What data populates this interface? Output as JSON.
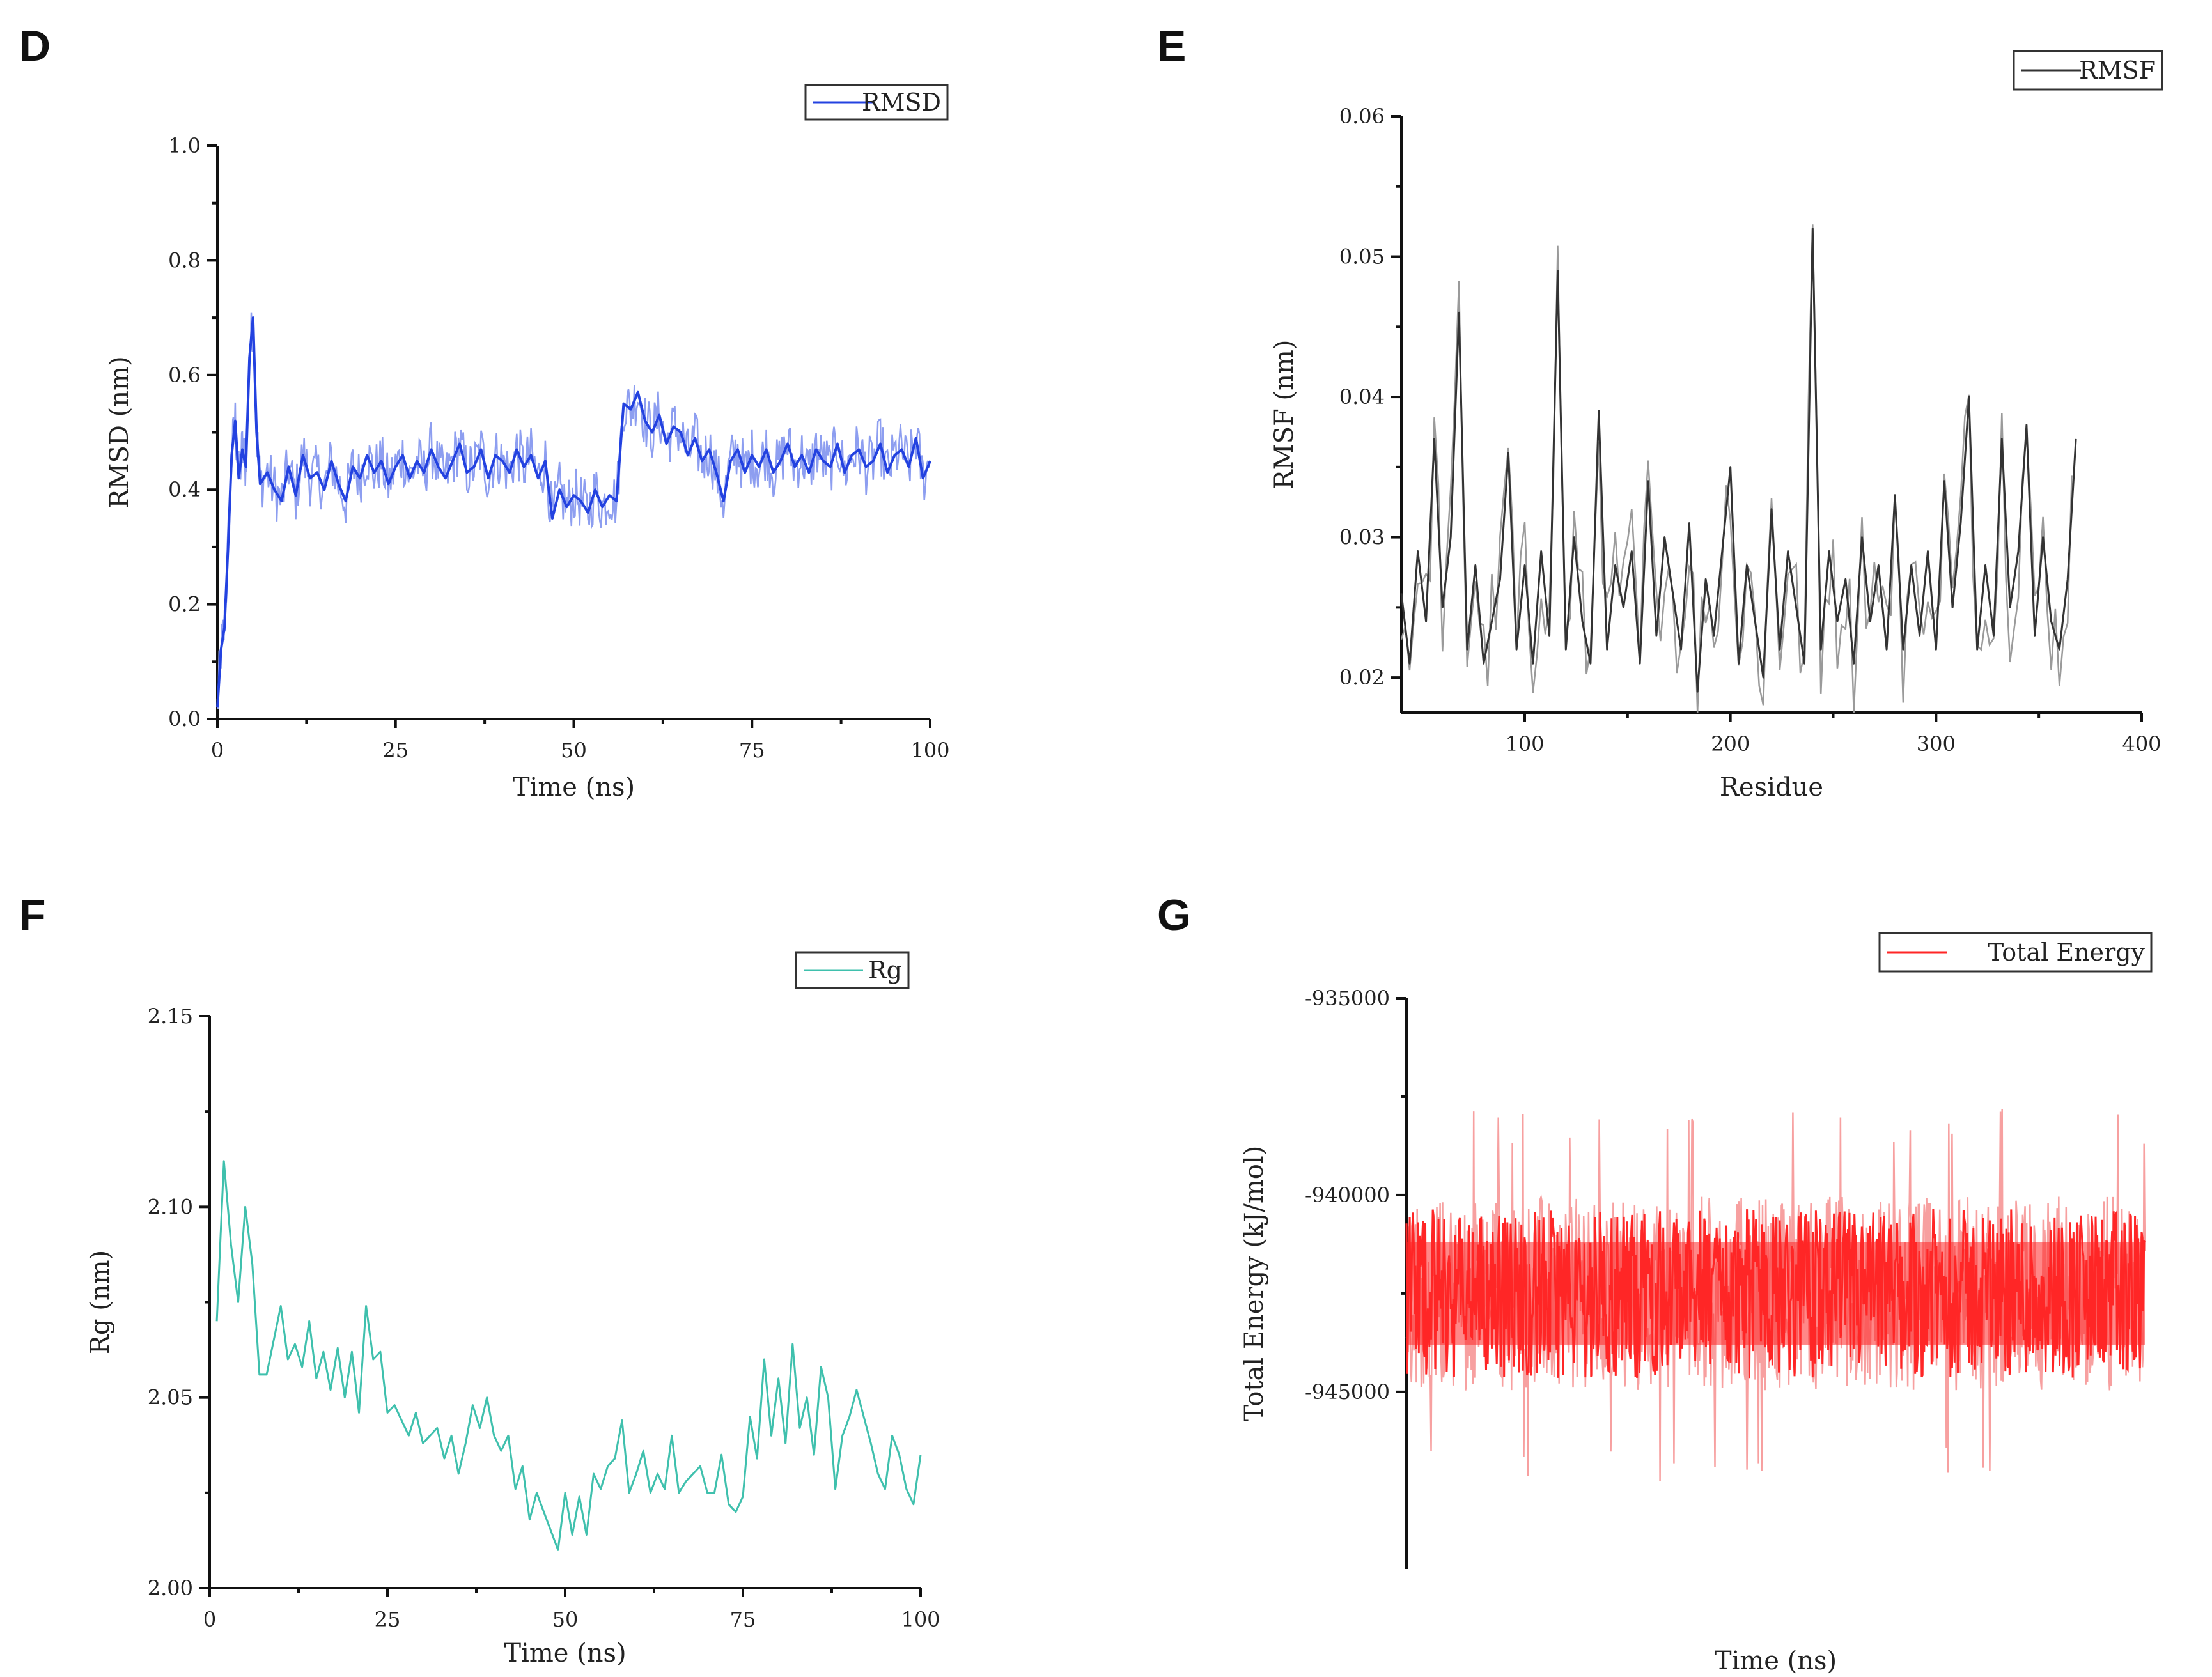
{
  "panels": {
    "D": "D",
    "E": "E",
    "F": "F",
    "G": "G"
  },
  "chart_data": [
    {
      "panel": "D",
      "type": "line",
      "xlabel": "Time (ns)",
      "ylabel": "RMSD (nm)",
      "xlim": [
        0,
        100
      ],
      "ylim": [
        0.0,
        1.0
      ],
      "xticks": [
        0,
        25,
        50,
        75,
        100
      ],
      "xtick_labels": [
        "0",
        "25",
        "50",
        "75",
        "100"
      ],
      "yticks": [
        0.0,
        0.2,
        0.4,
        0.6,
        0.8,
        1.0
      ],
      "ytick_labels": [
        "0.0",
        "0.2",
        "0.4",
        "0.6",
        "0.8",
        "1.0"
      ],
      "legend_position": "top-right",
      "color": "#2342e0",
      "series": [
        {
          "name": "RMSD",
          "x": [
            0,
            0.5,
            1,
            1.5,
            2,
            2.5,
            3,
            3.5,
            4,
            4.5,
            5,
            5.5,
            6,
            7,
            8,
            9,
            10,
            11,
            12,
            13,
            14,
            15,
            16,
            17,
            18,
            19,
            20,
            21,
            22,
            23,
            24,
            25,
            26,
            27,
            28,
            29,
            30,
            31,
            32,
            33,
            34,
            35,
            36,
            37,
            38,
            39,
            40,
            41,
            42,
            43,
            44,
            45,
            46,
            47,
            48,
            49,
            50,
            51,
            52,
            53,
            54,
            55,
            56,
            57,
            58,
            59,
            60,
            61,
            62,
            63,
            64,
            65,
            66,
            67,
            68,
            69,
            70,
            71,
            72,
            73,
            74,
            75,
            76,
            77,
            78,
            79,
            80,
            81,
            82,
            83,
            84,
            85,
            86,
            87,
            88,
            89,
            90,
            91,
            92,
            93,
            94,
            95,
            96,
            97,
            98,
            99,
            100
          ],
          "y": [
            0.02,
            0.12,
            0.16,
            0.3,
            0.46,
            0.52,
            0.42,
            0.47,
            0.44,
            0.63,
            0.7,
            0.5,
            0.41,
            0.43,
            0.4,
            0.38,
            0.44,
            0.39,
            0.46,
            0.42,
            0.43,
            0.4,
            0.45,
            0.41,
            0.38,
            0.44,
            0.42,
            0.46,
            0.43,
            0.45,
            0.41,
            0.44,
            0.46,
            0.42,
            0.45,
            0.43,
            0.47,
            0.44,
            0.42,
            0.45,
            0.48,
            0.43,
            0.44,
            0.47,
            0.42,
            0.46,
            0.45,
            0.43,
            0.47,
            0.44,
            0.46,
            0.42,
            0.45,
            0.35,
            0.4,
            0.37,
            0.39,
            0.38,
            0.36,
            0.4,
            0.37,
            0.39,
            0.38,
            0.55,
            0.54,
            0.57,
            0.52,
            0.5,
            0.53,
            0.48,
            0.51,
            0.5,
            0.46,
            0.49,
            0.45,
            0.47,
            0.43,
            0.38,
            0.45,
            0.47,
            0.43,
            0.46,
            0.44,
            0.47,
            0.43,
            0.45,
            0.48,
            0.44,
            0.46,
            0.43,
            0.47,
            0.45,
            0.44,
            0.48,
            0.43,
            0.46,
            0.47,
            0.44,
            0.45,
            0.48,
            0.43,
            0.46,
            0.47,
            0.44,
            0.49,
            0.42,
            0.45
          ]
        }
      ]
    },
    {
      "panel": "E",
      "type": "line",
      "xlabel": "Residue",
      "ylabel": "RMSF (nm)",
      "xlim": [
        40,
        400
      ],
      "ylim": [
        0.0175,
        0.06
      ],
      "xticks": [
        100,
        200,
        300,
        400
      ],
      "xtick_labels": [
        "100",
        "200",
        "300",
        "400"
      ],
      "yticks": [
        0.02,
        0.03,
        0.04,
        0.05,
        0.06
      ],
      "ytick_labels": [
        "0.02",
        "0.03",
        "0.04",
        "0.05",
        "0.06"
      ],
      "legend_position": "top-right",
      "color": "#333333",
      "series": [
        {
          "name": "RMSF",
          "x": [
            40,
            44,
            48,
            52,
            56,
            60,
            64,
            68,
            72,
            76,
            80,
            84,
            88,
            92,
            96,
            100,
            104,
            108,
            112,
            116,
            120,
            124,
            128,
            132,
            136,
            140,
            144,
            148,
            152,
            156,
            160,
            164,
            168,
            172,
            176,
            180,
            184,
            188,
            192,
            196,
            200,
            204,
            208,
            212,
            216,
            220,
            224,
            228,
            232,
            236,
            240,
            244,
            248,
            252,
            256,
            260,
            264,
            268,
            272,
            276,
            280,
            284,
            288,
            292,
            296,
            300,
            304,
            308,
            312,
            316,
            320,
            324,
            328,
            332,
            336,
            340,
            344,
            348,
            352,
            356,
            360,
            364,
            368
          ],
          "y": [
            0.026,
            0.021,
            0.029,
            0.024,
            0.037,
            0.025,
            0.03,
            0.046,
            0.022,
            0.028,
            0.021,
            0.024,
            0.027,
            0.036,
            0.022,
            0.028,
            0.021,
            0.029,
            0.023,
            0.049,
            0.022,
            0.03,
            0.024,
            0.021,
            0.039,
            0.022,
            0.028,
            0.025,
            0.029,
            0.021,
            0.034,
            0.023,
            0.03,
            0.026,
            0.022,
            0.031,
            0.019,
            0.027,
            0.023,
            0.029,
            0.035,
            0.021,
            0.028,
            0.024,
            0.02,
            0.032,
            0.022,
            0.029,
            0.025,
            0.021,
            0.052,
            0.022,
            0.029,
            0.024,
            0.027,
            0.021,
            0.03,
            0.024,
            0.028,
            0.022,
            0.033,
            0.022,
            0.028,
            0.023,
            0.029,
            0.022,
            0.034,
            0.025,
            0.031,
            0.04,
            0.022,
            0.028,
            0.023,
            0.037,
            0.025,
            0.029,
            0.038,
            0.023,
            0.03,
            0.024,
            0.022,
            0.027,
            0.037
          ]
        }
      ]
    },
    {
      "panel": "F",
      "type": "line",
      "xlabel": "Time (ns)",
      "ylabel": "Rg (nm)",
      "xlim": [
        0,
        100
      ],
      "ylim": [
        2.0,
        2.15
      ],
      "xticks": [
        0,
        25,
        50,
        75,
        100
      ],
      "xtick_labels": [
        "0",
        "25",
        "50",
        "75",
        "100"
      ],
      "yticks": [
        2.0,
        2.05,
        2.1,
        2.15
      ],
      "ytick_labels": [
        "2.00",
        "2.05",
        "2.10",
        "2.15"
      ],
      "legend_position": "top-right",
      "color": "#3fc0ad",
      "series": [
        {
          "name": "Rg",
          "x": [
            1,
            2,
            3,
            4,
            5,
            6,
            7,
            8,
            9,
            10,
            11,
            12,
            13,
            14,
            15,
            16,
            17,
            18,
            19,
            20,
            21,
            22,
            23,
            24,
            25,
            26,
            27,
            28,
            29,
            30,
            31,
            32,
            33,
            34,
            35,
            36,
            37,
            38,
            39,
            40,
            41,
            42,
            43,
            44,
            45,
            46,
            47,
            48,
            49,
            50,
            51,
            52,
            53,
            54,
            55,
            56,
            57,
            58,
            59,
            60,
            61,
            62,
            63,
            64,
            65,
            66,
            67,
            68,
            69,
            70,
            71,
            72,
            73,
            74,
            75,
            76,
            77,
            78,
            79,
            80,
            81,
            82,
            83,
            84,
            85,
            86,
            87,
            88,
            89,
            90,
            91,
            92,
            93,
            94,
            95,
            96,
            97,
            98,
            99,
            100
          ],
          "y": [
            2.07,
            2.112,
            2.09,
            2.075,
            2.1,
            2.085,
            2.056,
            2.056,
            2.065,
            2.074,
            2.06,
            2.064,
            2.058,
            2.07,
            2.055,
            2.062,
            2.052,
            2.063,
            2.05,
            2.062,
            2.046,
            2.074,
            2.06,
            2.062,
            2.046,
            2.048,
            2.044,
            2.04,
            2.046,
            2.038,
            2.04,
            2.042,
            2.034,
            2.04,
            2.03,
            2.038,
            2.048,
            2.042,
            2.05,
            2.04,
            2.036,
            2.04,
            2.026,
            2.032,
            2.018,
            2.025,
            2.02,
            2.015,
            2.01,
            2.025,
            2.014,
            2.024,
            2.014,
            2.03,
            2.026,
            2.032,
            2.034,
            2.044,
            2.025,
            2.03,
            2.036,
            2.025,
            2.03,
            2.026,
            2.04,
            2.025,
            2.028,
            2.03,
            2.032,
            2.025,
            2.025,
            2.035,
            2.022,
            2.02,
            2.024,
            2.045,
            2.034,
            2.06,
            2.04,
            2.055,
            2.038,
            2.064,
            2.042,
            2.05,
            2.035,
            2.058,
            2.05,
            2.026,
            2.04,
            2.045,
            2.052,
            2.045,
            2.038,
            2.03,
            2.026,
            2.04,
            2.035,
            2.026,
            2.022,
            2.035
          ]
        }
      ]
    },
    {
      "panel": "G",
      "type": "line",
      "xlabel": "Time (ns)",
      "ylabel": "Total Energy (kJ/mol)",
      "xlim": [
        0,
        100
      ],
      "ylim": [
        -949500,
        -935000
      ],
      "xticks": [],
      "xtick_labels": [],
      "yticks": [
        -935000,
        -940000,
        -945000
      ],
      "ytick_labels": [
        "-935000",
        "-940000",
        "-945000"
      ],
      "legend_position": "top-right",
      "color": "#ff2626",
      "series": [
        {
          "name": "Total Energy",
          "mean": -942500,
          "band_low": -944600,
          "band_high": -940300,
          "min": -947300,
          "max": -937800
        }
      ]
    }
  ]
}
